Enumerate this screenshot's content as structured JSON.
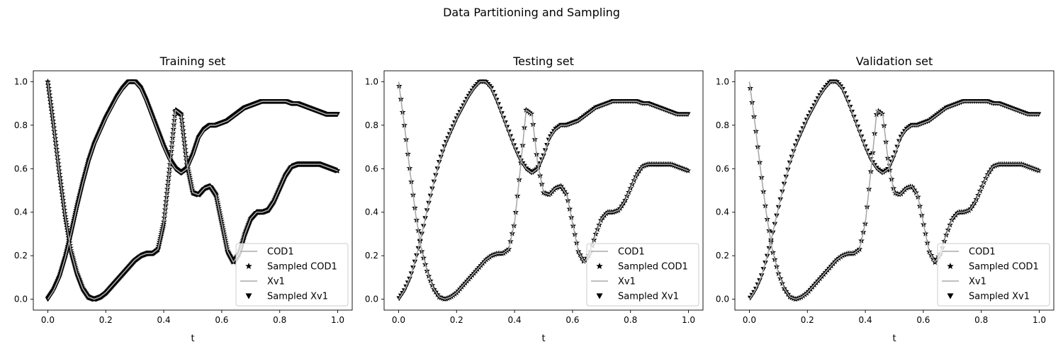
{
  "figure": {
    "suptitle": "Data Partitioning and Sampling"
  },
  "chart_data": [
    {
      "type": "line",
      "title": "Training set",
      "xlabel": "t",
      "ylabel": "",
      "xlim": [
        -0.05,
        1.05
      ],
      "ylim": [
        -0.05,
        1.05
      ],
      "xticks": [
        "0.0",
        "0.2",
        "0.4",
        "0.6",
        "0.8",
        "1.0"
      ],
      "yticks": [
        "0.0",
        "0.2",
        "0.4",
        "0.6",
        "0.8",
        "1.0"
      ],
      "legend": [
        "COD1",
        "Sampled COD1",
        "Xv1",
        "Sampled Xv1"
      ],
      "legend_loc": "lower right",
      "grid": false,
      "curves": {
        "COD1": {
          "x": [
            0.0,
            0.02,
            0.04,
            0.06,
            0.08,
            0.1,
            0.12,
            0.14,
            0.16,
            0.18,
            0.2,
            0.22,
            0.24,
            0.26,
            0.28,
            0.3,
            0.32,
            0.34,
            0.36,
            0.38,
            0.4,
            0.42,
            0.44,
            0.46,
            0.48,
            0.5,
            0.52,
            0.54,
            0.56,
            0.58,
            0.6,
            0.62,
            0.64,
            0.66,
            0.68,
            0.7,
            0.72,
            0.74,
            0.76,
            0.78,
            0.8,
            0.82,
            0.84,
            0.86,
            0.88,
            0.9,
            0.92,
            0.94,
            0.96,
            0.98,
            1.0
          ],
          "y": [
            1.0,
            0.8,
            0.58,
            0.38,
            0.22,
            0.12,
            0.05,
            0.01,
            0.0,
            0.01,
            0.03,
            0.06,
            0.09,
            0.12,
            0.15,
            0.18,
            0.2,
            0.21,
            0.21,
            0.23,
            0.35,
            0.6,
            0.87,
            0.85,
            0.62,
            0.49,
            0.48,
            0.51,
            0.52,
            0.48,
            0.35,
            0.22,
            0.17,
            0.21,
            0.3,
            0.37,
            0.4,
            0.4,
            0.41,
            0.45,
            0.51,
            0.57,
            0.61,
            0.62,
            0.62,
            0.62,
            0.62,
            0.62,
            0.61,
            0.6,
            0.59
          ]
        },
        "Xv1": {
          "x": [
            0.0,
            0.02,
            0.04,
            0.06,
            0.08,
            0.1,
            0.12,
            0.14,
            0.16,
            0.18,
            0.2,
            0.22,
            0.24,
            0.26,
            0.28,
            0.3,
            0.32,
            0.34,
            0.36,
            0.38,
            0.4,
            0.42,
            0.44,
            0.46,
            0.48,
            0.5,
            0.52,
            0.54,
            0.56,
            0.58,
            0.6,
            0.62,
            0.64,
            0.66,
            0.68,
            0.7,
            0.72,
            0.74,
            0.76,
            0.78,
            0.8,
            0.82,
            0.84,
            0.86,
            0.88,
            0.9,
            0.92,
            0.94,
            0.96,
            0.98,
            1.0
          ],
          "y": [
            0.0,
            0.04,
            0.1,
            0.19,
            0.3,
            0.42,
            0.53,
            0.63,
            0.71,
            0.77,
            0.83,
            0.88,
            0.93,
            0.97,
            1.0,
            1.0,
            0.97,
            0.91,
            0.84,
            0.77,
            0.7,
            0.64,
            0.6,
            0.58,
            0.6,
            0.66,
            0.74,
            0.78,
            0.8,
            0.8,
            0.81,
            0.82,
            0.84,
            0.86,
            0.88,
            0.89,
            0.9,
            0.91,
            0.91,
            0.91,
            0.91,
            0.91,
            0.9,
            0.9,
            0.89,
            0.88,
            0.87,
            0.86,
            0.85,
            0.85,
            0.85
          ]
        }
      }
    },
    {
      "type": "line",
      "title": "Testing set",
      "xlabel": "t",
      "ylabel": "",
      "xlim": [
        -0.05,
        1.05
      ],
      "ylim": [
        -0.05,
        1.05
      ],
      "xticks": [
        "0.0",
        "0.2",
        "0.4",
        "0.6",
        "0.8",
        "1.0"
      ],
      "yticks": [
        "0.0",
        "0.2",
        "0.4",
        "0.6",
        "0.8",
        "1.0"
      ],
      "legend": [
        "COD1",
        "Sampled COD1",
        "Xv1",
        "Sampled Xv1"
      ],
      "legend_loc": "lower right",
      "grid": false
    },
    {
      "type": "line",
      "title": "Validation set",
      "xlabel": "t",
      "ylabel": "",
      "xlim": [
        -0.05,
        1.05
      ],
      "ylim": [
        -0.05,
        1.05
      ],
      "xticks": [
        "0.0",
        "0.2",
        "0.4",
        "0.6",
        "0.8",
        "1.0"
      ],
      "yticks": [
        "0.0",
        "0.2",
        "0.4",
        "0.6",
        "0.8",
        "1.0"
      ],
      "legend": [
        "COD1",
        "Sampled COD1",
        "Xv1",
        "Sampled Xv1"
      ],
      "legend_loc": "lower right",
      "grid": false
    }
  ],
  "style": {
    "line_color": "#aaaaaa",
    "marker_color": "#000000",
    "axes_color": "#000000",
    "legend_border": "#cccccc"
  }
}
